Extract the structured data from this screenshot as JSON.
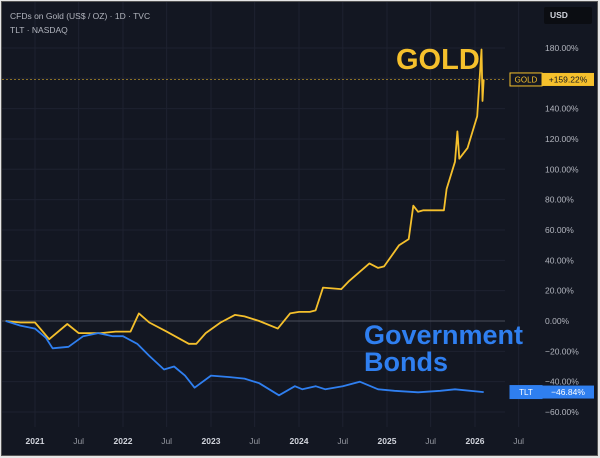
{
  "header": {
    "line1": "CFDs on Gold (US$ / OZ) · 1D · TVC",
    "line2": "TLT · NASDAQ",
    "currency": "USD"
  },
  "annotations": {
    "gold": "GOLD",
    "bonds_line1": "Government",
    "bonds_line2": "Bonds"
  },
  "colors": {
    "background": "#131722",
    "gold": "#f5c02c",
    "tlt": "#2f7ff0",
    "axis_text": "#b2b5be"
  },
  "chart_data": {
    "type": "line",
    "title": "",
    "y_scale": "percent",
    "ylim": [
      -68,
      185
    ],
    "y_ticks": [
      180,
      160,
      140,
      120,
      100,
      80,
      60,
      40,
      20,
      0,
      -20,
      -40,
      -60
    ],
    "y_tick_labels": [
      "180.00%",
      "",
      "140.00%",
      "120.00%",
      "100.00%",
      "80.00%",
      "60.00%",
      "40.00%",
      "20.00%",
      "0.00%",
      "−20.00%",
      "−40.00%",
      "−60.00%"
    ],
    "x_ticks": [
      "2021-01-01",
      "2021-07-01",
      "2022-01-01",
      "2022-07-01",
      "2023-01-01",
      "2023-07-01",
      "2024-01-01",
      "2024-07-01",
      "2025-01-01",
      "2025-07-01",
      "2026-01-01",
      "2026-07-01"
    ],
    "x_tick_labels": [
      "2021",
      "Jul",
      "2022",
      "Jul",
      "2023",
      "Jul",
      "2024",
      "Jul",
      "2025",
      "Jul",
      "2026",
      "Jul"
    ],
    "grid": true,
    "series": [
      {
        "name": "GOLD",
        "last_label": "+159.22%",
        "last_value": 159.22,
        "color": "#f5c02c",
        "points": [
          [
            "2020-09-01",
            0
          ],
          [
            "2020-11-01",
            -1
          ],
          [
            "2021-01-01",
            -1
          ],
          [
            "2021-03-01",
            -12
          ],
          [
            "2021-05-15",
            -2
          ],
          [
            "2021-07-01",
            -8
          ],
          [
            "2021-10-01",
            -8
          ],
          [
            "2021-12-01",
            -7
          ],
          [
            "2022-02-01",
            -7
          ],
          [
            "2022-03-08",
            5
          ],
          [
            "2022-04-20",
            -1
          ],
          [
            "2022-07-01",
            -7
          ],
          [
            "2022-10-01",
            -15
          ],
          [
            "2022-11-01",
            -15
          ],
          [
            "2022-12-10",
            -8
          ],
          [
            "2023-02-10",
            -1
          ],
          [
            "2023-04-10",
            4
          ],
          [
            "2023-05-20",
            3
          ],
          [
            "2023-07-20",
            0
          ],
          [
            "2023-10-05",
            -5
          ],
          [
            "2023-11-25",
            5
          ],
          [
            "2024-01-01",
            6
          ],
          [
            "2024-02-15",
            6
          ],
          [
            "2024-03-10",
            7
          ],
          [
            "2024-04-10",
            22
          ],
          [
            "2024-06-25",
            21
          ],
          [
            "2024-07-25",
            26
          ],
          [
            "2024-10-20",
            38
          ],
          [
            "2024-11-25",
            35
          ],
          [
            "2024-12-20",
            36
          ],
          [
            "2025-02-20",
            50
          ],
          [
            "2025-04-01",
            54
          ],
          [
            "2025-04-20",
            76
          ],
          [
            "2025-05-10",
            72
          ],
          [
            "2025-06-01",
            73
          ],
          [
            "2025-08-25",
            73
          ],
          [
            "2025-09-05",
            87
          ],
          [
            "2025-10-10",
            105
          ],
          [
            "2025-10-20",
            125
          ],
          [
            "2025-10-28",
            107
          ],
          [
            "2025-12-01",
            114
          ],
          [
            "2026-01-10",
            135
          ],
          [
            "2026-01-28",
            179
          ],
          [
            "2026-02-01",
            145
          ],
          [
            "2026-02-06",
            159.22
          ]
        ]
      },
      {
        "name": "TLT",
        "last_label": "−46.84%",
        "last_value": -46.84,
        "color": "#2f7ff0",
        "points": [
          [
            "2020-09-01",
            0
          ],
          [
            "2020-11-01",
            -3
          ],
          [
            "2021-01-01",
            -5
          ],
          [
            "2021-02-15",
            -11
          ],
          [
            "2021-03-15",
            -18
          ],
          [
            "2021-05-20",
            -17
          ],
          [
            "2021-07-20",
            -10
          ],
          [
            "2021-09-20",
            -8
          ],
          [
            "2021-11-20",
            -10
          ],
          [
            "2022-01-01",
            -10
          ],
          [
            "2022-03-01",
            -15
          ],
          [
            "2022-04-20",
            -23
          ],
          [
            "2022-06-20",
            -32
          ],
          [
            "2022-08-01",
            -30
          ],
          [
            "2022-09-15",
            -36
          ],
          [
            "2022-10-25",
            -44
          ],
          [
            "2023-01-01",
            -36
          ],
          [
            "2023-03-20",
            -37
          ],
          [
            "2023-05-20",
            -38
          ],
          [
            "2023-07-20",
            -41
          ],
          [
            "2023-10-10",
            -49
          ],
          [
            "2023-12-15",
            -43
          ],
          [
            "2024-01-15",
            -45
          ],
          [
            "2024-03-10",
            -43
          ],
          [
            "2024-04-20",
            -45
          ],
          [
            "2024-07-01",
            -43
          ],
          [
            "2024-09-10",
            -40
          ],
          [
            "2024-11-25",
            -45
          ],
          [
            "2025-02-01",
            -46
          ],
          [
            "2025-05-10",
            -47
          ],
          [
            "2025-08-10",
            -46
          ],
          [
            "2025-10-10",
            -45
          ],
          [
            "2026-02-06",
            -46.84
          ]
        ]
      }
    ]
  }
}
